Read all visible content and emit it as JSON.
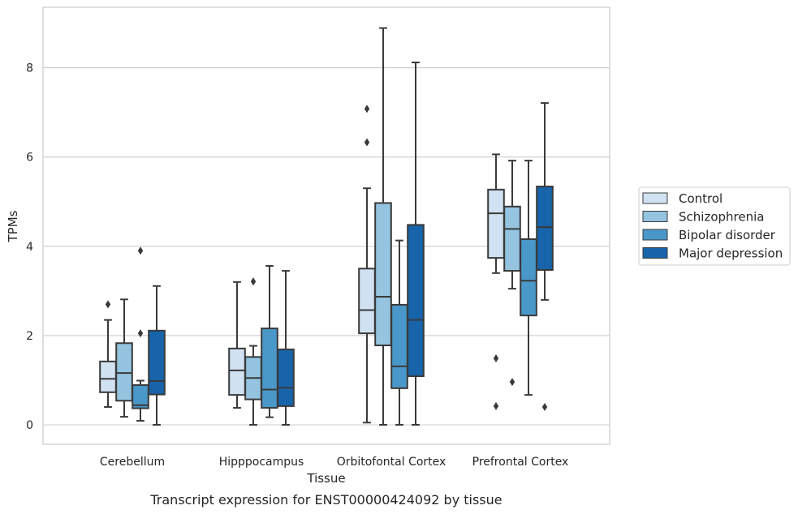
{
  "chart_data": {
    "type": "box",
    "title": "",
    "caption": "Transcript expression for ENST00000424092 by tissue",
    "xlabel": "Tissue",
    "ylabel": "TPMs",
    "ylim": [
      -0.45,
      9.35
    ],
    "yticks": [
      0,
      2,
      4,
      6,
      8
    ],
    "grid": "horizontal",
    "legend_position": "right",
    "categories": [
      "Cerebellum",
      "Hipppocampus",
      "Orbitofontal Cortex",
      "Prefrontal Cortex"
    ],
    "series": [
      {
        "name": "Control",
        "color": "#d0e1f2",
        "boxes": [
          {
            "whislo": 0.4,
            "q1": 0.73,
            "med": 1.03,
            "q3": 1.42,
            "whishi": 2.35,
            "fliers": [
              2.7
            ]
          },
          {
            "whislo": 0.38,
            "q1": 0.67,
            "med": 1.22,
            "q3": 1.71,
            "whishi": 3.2,
            "fliers": []
          },
          {
            "whislo": 0.05,
            "q1": 2.05,
            "med": 2.57,
            "q3": 3.5,
            "whishi": 5.3,
            "fliers": [
              6.33,
              7.08
            ]
          },
          {
            "whislo": 3.4,
            "q1": 3.74,
            "med": 4.74,
            "q3": 5.27,
            "whishi": 6.06,
            "fliers": [
              0.42,
              1.49
            ]
          }
        ]
      },
      {
        "name": "Schizophrenia",
        "color": "#94c4df",
        "boxes": [
          {
            "whislo": 0.18,
            "q1": 0.54,
            "med": 1.16,
            "q3": 1.83,
            "whishi": 2.81,
            "fliers": []
          },
          {
            "whislo": 0.0,
            "q1": 0.57,
            "med": 1.05,
            "q3": 1.52,
            "whishi": 1.77,
            "fliers": [
              3.21
            ]
          },
          {
            "whislo": 0.0,
            "q1": 1.78,
            "med": 2.87,
            "q3": 4.97,
            "whishi": 8.89,
            "fliers": []
          },
          {
            "whislo": 3.05,
            "q1": 3.45,
            "med": 4.39,
            "q3": 4.89,
            "whishi": 5.92,
            "fliers": [
              0.96
            ]
          }
        ]
      },
      {
        "name": "Bipolar disorder",
        "color": "#4a98c9",
        "boxes": [
          {
            "whislo": 0.09,
            "q1": 0.37,
            "med": 0.44,
            "q3": 0.89,
            "whishi": 0.99,
            "fliers": [
              2.05,
              3.9
            ]
          },
          {
            "whislo": 0.17,
            "q1": 0.38,
            "med": 0.79,
            "q3": 2.16,
            "whishi": 3.56,
            "fliers": []
          },
          {
            "whislo": 0.0,
            "q1": 0.82,
            "med": 1.31,
            "q3": 2.69,
            "whishi": 4.13,
            "fliers": []
          },
          {
            "whislo": 0.67,
            "q1": 2.45,
            "med": 3.23,
            "q3": 4.16,
            "whishi": 5.92,
            "fliers": []
          }
        ]
      },
      {
        "name": "Major depression",
        "color": "#1764ab",
        "boxes": [
          {
            "whislo": 0.0,
            "q1": 0.68,
            "med": 0.98,
            "q3": 2.11,
            "whishi": 3.11,
            "fliers": []
          },
          {
            "whislo": 0.0,
            "q1": 0.42,
            "med": 0.83,
            "q3": 1.69,
            "whishi": 3.45,
            "fliers": []
          },
          {
            "whislo": 0.0,
            "q1": 1.09,
            "med": 2.35,
            "q3": 4.48,
            "whishi": 8.12,
            "fliers": []
          },
          {
            "whislo": 2.8,
            "q1": 3.47,
            "med": 4.43,
            "q3": 5.34,
            "whishi": 7.21,
            "fliers": [
              0.4
            ]
          }
        ]
      }
    ]
  }
}
